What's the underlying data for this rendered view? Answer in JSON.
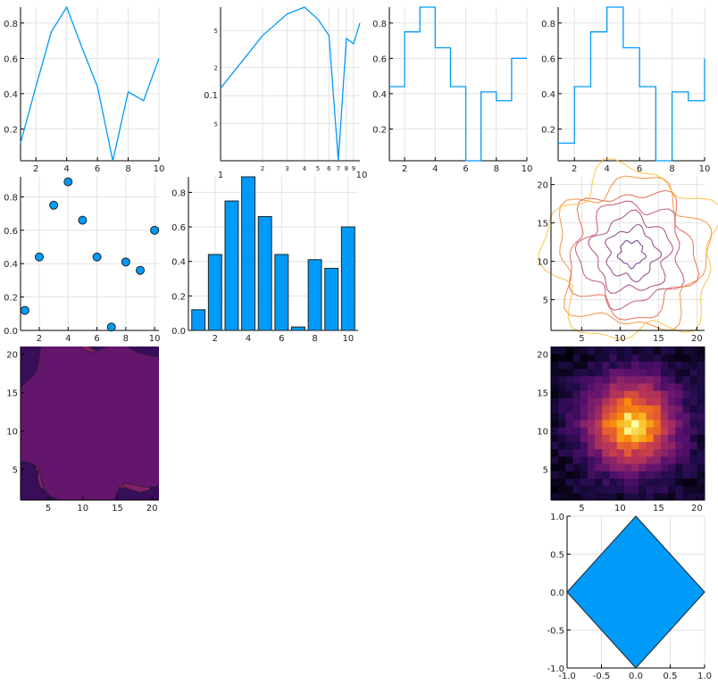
{
  "colors": {
    "series": "#009af9",
    "bar_edge": "#222222",
    "grid": "#e2e2e2"
  },
  "chart_data": [
    {
      "id": "line",
      "type": "line",
      "x": [
        1,
        2,
        3,
        4,
        5,
        6,
        7,
        8,
        9,
        10
      ],
      "values": [
        0.12,
        0.44,
        0.75,
        0.89,
        0.66,
        0.44,
        0.02,
        0.41,
        0.36,
        0.6
      ],
      "xlim": [
        1,
        10
      ],
      "ylim": [
        0.02,
        0.89
      ],
      "xticks": [
        "2",
        "4",
        "6",
        "8",
        "10"
      ],
      "yticks": [
        "0.2",
        "0.4",
        "0.6",
        "0.8"
      ],
      "grid": true
    },
    {
      "id": "line-loglog",
      "type": "line",
      "xscale": "log",
      "yscale": "log",
      "x": [
        1,
        2,
        3,
        4,
        5,
        6,
        7,
        8,
        9,
        10
      ],
      "values": [
        0.12,
        0.44,
        0.75,
        0.89,
        0.66,
        0.44,
        0.02,
        0.41,
        0.36,
        0.6
      ],
      "xticks": [
        "1",
        "2",
        "3",
        "4",
        "5",
        "6",
        "7",
        "8",
        "9",
        "10"
      ],
      "yticks": [
        "5",
        "0.1",
        "2",
        "5"
      ],
      "grid": true
    },
    {
      "id": "steps-pre",
      "type": "line",
      "step": "pre",
      "x": [
        1,
        2,
        3,
        4,
        5,
        6,
        7,
        8,
        9,
        10
      ],
      "values": [
        0.12,
        0.44,
        0.75,
        0.89,
        0.66,
        0.44,
        0.02,
        0.41,
        0.36,
        0.6
      ],
      "xticks": [
        "2",
        "4",
        "6",
        "8",
        "10"
      ],
      "yticks": [
        "0.2",
        "0.4",
        "0.6",
        "0.8"
      ],
      "grid": true
    },
    {
      "id": "steps-post",
      "type": "line",
      "step": "post",
      "x": [
        1,
        2,
        3,
        4,
        5,
        6,
        7,
        8,
        9,
        10
      ],
      "values": [
        0.12,
        0.44,
        0.75,
        0.89,
        0.66,
        0.44,
        0.02,
        0.41,
        0.36,
        0.6
      ],
      "xticks": [
        "2",
        "4",
        "6",
        "8",
        "10"
      ],
      "yticks": [
        "0.2",
        "0.4",
        "0.6",
        "0.8"
      ],
      "grid": true
    },
    {
      "id": "scatter",
      "type": "scatter",
      "x": [
        1,
        2,
        3,
        4,
        5,
        6,
        7,
        8,
        9,
        10
      ],
      "values": [
        0.12,
        0.44,
        0.75,
        0.89,
        0.66,
        0.44,
        0.02,
        0.41,
        0.36,
        0.6
      ],
      "xticks": [
        "2",
        "4",
        "6",
        "8",
        "10"
      ],
      "yticks": [
        "0.0",
        "0.2",
        "0.4",
        "0.6",
        "0.8"
      ],
      "grid": true
    },
    {
      "id": "bar",
      "type": "bar",
      "categories": [
        1,
        2,
        3,
        4,
        5,
        6,
        7,
        8,
        9,
        10
      ],
      "values": [
        0.12,
        0.44,
        0.75,
        0.89,
        0.66,
        0.44,
        0.02,
        0.41,
        0.36,
        0.6
      ],
      "xticks": [
        "2",
        "4",
        "6",
        "8",
        "10"
      ],
      "yticks": [
        "0.0",
        "0.2",
        "0.4",
        "0.6",
        "0.8"
      ],
      "grid": true
    },
    {
      "id": "contour",
      "type": "contour",
      "filled": false,
      "colormap": "inferno",
      "xlim": [
        1,
        21
      ],
      "ylim": [
        1,
        21
      ],
      "xticks": [
        "5",
        "10",
        "15",
        "20"
      ],
      "yticks": [
        "5",
        "10",
        "15",
        "20"
      ],
      "description": "2D gaussian-like bump centered near (11,11) with noise"
    },
    {
      "id": "contourf",
      "type": "contour",
      "filled": true,
      "colormap": "inferno",
      "xlim": [
        1,
        21
      ],
      "ylim": [
        1,
        21
      ],
      "xticks": [
        "5",
        "10",
        "15",
        "20"
      ],
      "yticks": [
        "5",
        "10",
        "15",
        "20"
      ]
    },
    {
      "id": "heatmap",
      "type": "heatmap",
      "colormap": "inferno",
      "xlim": [
        1,
        21
      ],
      "ylim": [
        1,
        21
      ],
      "xticks": [
        "5",
        "10",
        "15",
        "20"
      ],
      "yticks": [
        "5",
        "10",
        "15",
        "20"
      ]
    },
    {
      "id": "shape",
      "type": "area",
      "x": [
        0,
        1,
        0,
        -1,
        0
      ],
      "values": [
        1,
        0,
        -1,
        0,
        1
      ],
      "xlim": [
        -1,
        1
      ],
      "ylim": [
        -1,
        1
      ],
      "xticks": [
        "-1.0",
        "-0.5",
        "0.0",
        "0.5",
        "1.0"
      ],
      "yticks": [
        "-1.0",
        "-0.5",
        "0.0",
        "0.5",
        "1.0"
      ],
      "grid": true
    }
  ]
}
